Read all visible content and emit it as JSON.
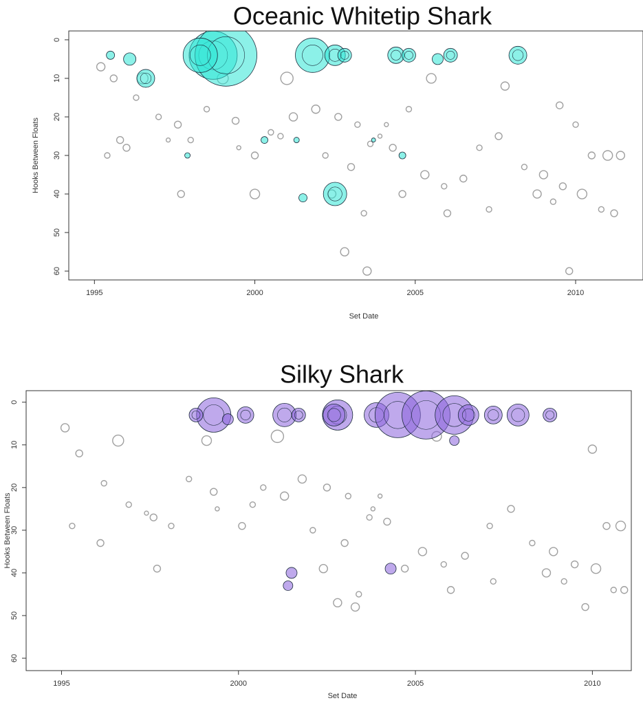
{
  "chart_data": [
    {
      "type": "scatter",
      "title": "Oceanic Whitetip Shark",
      "xlabel": "Set Date",
      "ylabel": "Hooks Between Floats",
      "xlim": [
        1994.2,
        2012.1
      ],
      "ylim": [
        -2.3,
        62.3
      ],
      "y_reversed": true,
      "xticks": [
        1995,
        2000,
        2005,
        2010
      ],
      "yticks": [
        0,
        10,
        20,
        30,
        40,
        50,
        60
      ],
      "series": [
        {
          "color": "#a0a0a0",
          "filled": false,
          "x": [
            1995.2,
            1995.6,
            1996.3,
            1997.0,
            1997.6,
            1998.0,
            1999.5,
            2000.0,
            2000.8,
            2001.2,
            1995.4,
            1996.0,
            1997.3,
            1998.5,
            1999.4,
            2000.5,
            2001.9,
            2002.6,
            2003.2,
            2003.9,
            2004.3,
            2002.2,
            2003.0,
            2003.6,
            2004.1,
            2002.4,
            2003.4,
            2004.6,
            2005.3,
            2005.9,
            2006.5,
            2007.0,
            2007.6,
            2008.4,
            2009.0,
            2009.6,
            2010.2,
            2010.8,
            2011.2,
            2006.0,
            2007.3,
            2008.8,
            2009.3,
            2010.5,
            2011.0,
            2002.8,
            2003.5,
            2009.8,
            2000.0,
            1997.7,
            1996.5,
            1999.0,
            2001.0,
            2005.5,
            2007.8,
            2009.5,
            2010.0,
            2011.4,
            1995.8,
            2004.8
          ],
          "values": [
            7,
            10,
            15,
            20,
            22,
            26,
            28,
            30,
            25,
            20,
            30,
            28,
            26,
            18,
            21,
            24,
            18,
            20,
            22,
            25,
            28,
            30,
            33,
            27,
            22,
            40,
            45,
            40,
            35,
            38,
            36,
            28,
            25,
            33,
            35,
            38,
            40,
            44,
            45,
            45,
            44,
            40,
            42,
            30,
            30,
            55,
            60,
            60,
            40,
            40,
            10,
            10,
            10,
            10,
            12,
            17,
            22,
            30,
            26,
            18
          ],
          "sizes": [
            6,
            5,
            4,
            4,
            5,
            4,
            3,
            5,
            4,
            6,
            4,
            5,
            3,
            4,
            5,
            4,
            6,
            5,
            4,
            3,
            5,
            4,
            5,
            4,
            3,
            6,
            4,
            5,
            6,
            4,
            5,
            4,
            5,
            4,
            6,
            5,
            7,
            4,
            5,
            5,
            4,
            6,
            4,
            5,
            7,
            6,
            6,
            5,
            7,
            5,
            8,
            8,
            9,
            7,
            6,
            5,
            4,
            6,
            5,
            4
          ]
        },
        {
          "color": "#2ee6d6",
          "filled": true,
          "x": [
            1998.7,
            1999.1,
            1998.3,
            2001.8,
            2002.5,
            2002.8,
            2004.4,
            2004.8,
            2006.1,
            2005.7,
            2008.2,
            1996.6,
            2002.5,
            1996.1,
            1995.5,
            2001.5,
            2004.6,
            2000.3,
            1997.9,
            2001.3,
            2003.7
          ],
          "values": [
            4,
            4,
            4,
            4,
            4,
            4,
            4,
            4,
            4,
            5,
            4,
            10,
            40,
            5,
            4,
            41,
            30,
            26,
            30,
            26,
            26
          ],
          "sizes": [
            35,
            45,
            25,
            25,
            15,
            10,
            12,
            10,
            10,
            8,
            13,
            13,
            17,
            9,
            6,
            6,
            5,
            5,
            4,
            4,
            3
          ]
        }
      ]
    },
    {
      "type": "scatter",
      "title": "Silky Shark",
      "xlabel": "Set Date",
      "ylabel": "Hooks Between Floats",
      "xlim": [
        1994.0,
        2011.1
      ],
      "ylim": [
        -2.7,
        62.9
      ],
      "y_reversed": true,
      "xticks": [
        1995,
        2000,
        2005,
        2010
      ],
      "yticks": [
        0,
        10,
        20,
        30,
        40,
        50,
        60
      ],
      "series": [
        {
          "color": "#a0a0a0",
          "filled": false,
          "x": [
            1995.1,
            1995.5,
            1996.2,
            1996.9,
            1997.6,
            1998.1,
            1999.4,
            2000.1,
            2000.7,
            2001.3,
            1995.3,
            1996.1,
            1997.4,
            1998.6,
            1999.3,
            2000.4,
            2001.8,
            2002.5,
            2003.1,
            2003.8,
            2004.2,
            2002.1,
            2003.0,
            2003.7,
            2004.0,
            2002.4,
            2003.4,
            2004.7,
            2005.2,
            2005.8,
            2006.4,
            2007.1,
            2007.7,
            2008.3,
            2008.9,
            2009.5,
            2010.1,
            2010.6,
            2010.9,
            2006.0,
            2007.2,
            2008.7,
            2009.2,
            2010.4,
            2010.8,
            2002.8,
            2003.3,
            2009.8,
            1997.7,
            1996.6,
            1999.1,
            2001.1,
            2005.6,
            2010.0
          ],
          "values": [
            6,
            12,
            19,
            24,
            27,
            29,
            25,
            29,
            20,
            22,
            29,
            33,
            26,
            18,
            21,
            24,
            18,
            20,
            22,
            25,
            28,
            30,
            33,
            27,
            22,
            39,
            45,
            39,
            35,
            38,
            36,
            29,
            25,
            33,
            35,
            38,
            39,
            44,
            44,
            44,
            42,
            40,
            42,
            29,
            29,
            47,
            48,
            48,
            39,
            9,
            9,
            8,
            8,
            11
          ],
          "sizes": [
            6,
            5,
            4,
            4,
            5,
            4,
            3,
            5,
            4,
            6,
            4,
            5,
            3,
            4,
            5,
            4,
            6,
            5,
            4,
            3,
            5,
            4,
            5,
            4,
            3,
            6,
            4,
            5,
            6,
            4,
            5,
            4,
            5,
            4,
            6,
            5,
            7,
            4,
            5,
            5,
            4,
            6,
            4,
            5,
            7,
            6,
            6,
            5,
            5,
            8,
            7,
            9,
            7,
            6
          ]
        },
        {
          "color": "#8a63dc",
          "filled": true,
          "x": [
            1999.3,
            1998.8,
            2000.2,
            2001.3,
            2001.7,
            2002.8,
            2002.7,
            2003.9,
            2004.5,
            2005.3,
            2006.1,
            2006.5,
            2007.2,
            2007.9,
            2008.8,
            2006.1,
            2001.5,
            2001.4,
            2004.3,
            1999.7
          ],
          "values": [
            3,
            3,
            3,
            3,
            3,
            3,
            3,
            3,
            3,
            3,
            3,
            3,
            3,
            3,
            3,
            9,
            40,
            43,
            39,
            4
          ],
          "sizes": [
            25,
            10,
            12,
            17,
            10,
            22,
            16,
            18,
            33,
            35,
            28,
            15,
            13,
            16,
            10,
            7,
            8,
            7,
            8,
            8
          ]
        }
      ]
    }
  ]
}
